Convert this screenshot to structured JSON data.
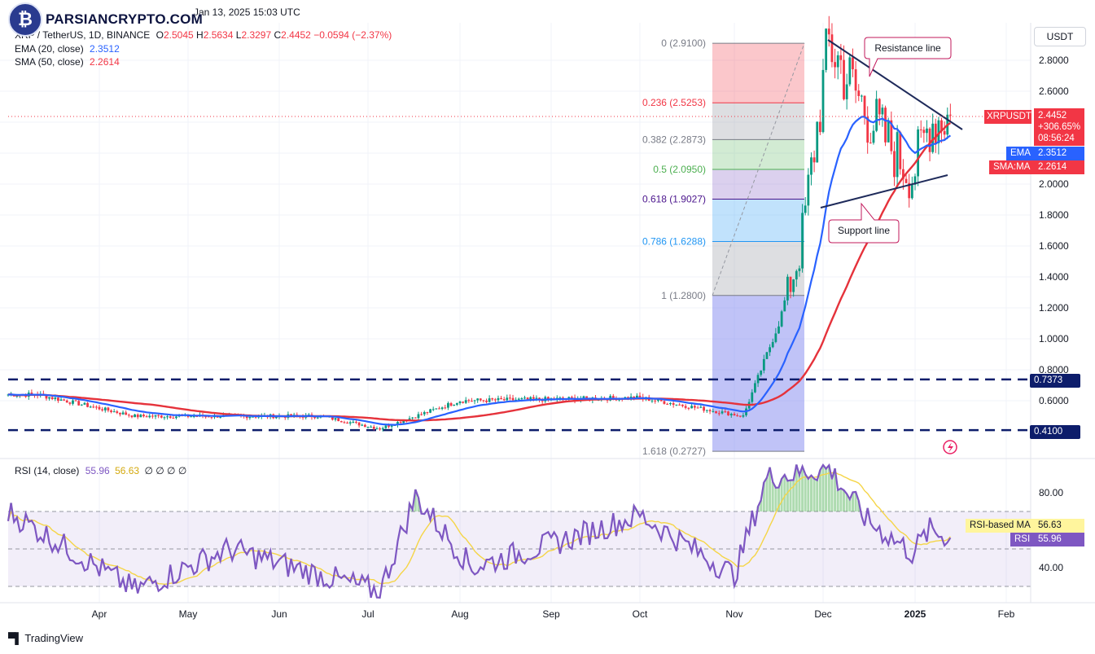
{
  "header": {
    "timestamp": "Jan 13, 2025 15:03 UTC",
    "symbol_line": "XRP / TetherUS, 1D, BINANCE",
    "ohlc": {
      "o_label": "O",
      "o": "2.5045",
      "h_label": "H",
      "h": "2.5634",
      "l_label": "L",
      "l": "2.3297",
      "c_label": "C",
      "c": "2.4452",
      "change": "−0.0594 (−2.37%)"
    },
    "ema_label": "EMA (20, close)",
    "ema_value": "2.3512",
    "sma_label": "SMA (50, close)",
    "sma_value": "2.2614"
  },
  "logo": {
    "text": "PARSIANCRYPTO.COM",
    "glyph": "₿"
  },
  "currency_button": "USDT",
  "price_tags": {
    "symbol": "XRPUSDT",
    "price": "2.4452",
    "change": "+306.65%",
    "countdown": "08:56:24",
    "ema_label": "EMA",
    "ema": "2.3512",
    "sma_label": "SMA:MA",
    "sma": "2.2614",
    "level_high": "0.7373",
    "level_low": "0.4100"
  },
  "annotations": {
    "resistance": "Resistance line",
    "support": "Support line"
  },
  "rsi_header": {
    "label": "RSI (14, close)",
    "rsi": "55.96",
    "ma": "56.63",
    "extras": "∅ ∅ ∅ ∅"
  },
  "rsi_tags": {
    "ma_label": "RSI-based MA",
    "ma": "56.63",
    "rsi_label": "RSI",
    "rsi": "55.96"
  },
  "footer": {
    "brand": "TradingView"
  },
  "colors": {
    "up": "#089981",
    "down": "#f23645",
    "ema": "#2962ff",
    "sma": "#e5323b",
    "trend": "#1e2a5a",
    "rsi": "#7e57c2",
    "rsi_ma": "#f5d547"
  },
  "chart_data": [
    {
      "type": "candlestick",
      "price_axis": {
        "ticks": [
          "2.8000",
          "2.6000",
          "2.4000",
          "2.2000",
          "2.0000",
          "1.8000",
          "1.6000",
          "1.4000",
          "1.2000",
          "1.0000",
          "0.8000",
          "0.6000"
        ],
        "range": [
          0.27,
          2.92
        ]
      },
      "time_axis": {
        "ticks": [
          "Apr",
          "May",
          "Jun",
          "Jul",
          "Aug",
          "Sep",
          "Oct",
          "Nov",
          "Dec",
          "2025",
          "Feb"
        ]
      },
      "fibonacci": [
        {
          "ratio": "0",
          "label": "0 (2.9100)",
          "price": 2.91,
          "color": "#787b86"
        },
        {
          "ratio": "0.236",
          "label": "0.236 (2.5253)",
          "price": 2.5253,
          "color": "#f23645"
        },
        {
          "ratio": "0.382",
          "label": "0.382 (2.2873)",
          "price": 2.2873,
          "color": "#787b86"
        },
        {
          "ratio": "0.5",
          "label": "0.5 (2.0950)",
          "price": 2.095,
          "color": "#4caf50"
        },
        {
          "ratio": "0.618",
          "label": "0.618 (1.9027)",
          "price": 1.9027,
          "color": "#4a148c"
        },
        {
          "ratio": "0.786",
          "label": "0.786 (1.6288)",
          "price": 1.6288,
          "color": "#2196f3"
        },
        {
          "ratio": "1",
          "label": "1 (1.2800)",
          "price": 1.28,
          "color": "#787b86"
        },
        {
          "ratio": "1.618",
          "label": "1.618 (0.2727)",
          "price": 0.2727,
          "color": "#787b86"
        }
      ],
      "horizontal_levels": [
        0.7373,
        0.41
      ],
      "key_points": [
        {
          "date": "2024-03-11",
          "price": 0.64
        },
        {
          "date": "2024-04-13",
          "price": 0.5
        },
        {
          "date": "2024-06-15",
          "price": 0.5
        },
        {
          "date": "2024-07-05",
          "price": 0.42
        },
        {
          "date": "2024-08-01",
          "price": 0.6
        },
        {
          "date": "2024-10-01",
          "price": 0.62
        },
        {
          "date": "2024-11-04",
          "price": 0.5
        },
        {
          "date": "2024-11-16",
          "price": 1.1
        },
        {
          "date": "2024-11-23",
          "price": 1.55
        },
        {
          "date": "2024-12-03",
          "price": 2.91
        },
        {
          "date": "2024-12-16",
          "price": 2.45
        },
        {
          "date": "2024-12-31",
          "price": 2.05
        },
        {
          "date": "2025-01-06",
          "price": 2.4
        },
        {
          "date": "2025-01-13",
          "price": 2.4452
        }
      ],
      "indicators": [
        {
          "name": "EMA (20, close)",
          "last": 2.3512
        },
        {
          "name": "SMA (50, close)",
          "last": 2.2614
        }
      ]
    },
    {
      "type": "line",
      "title": "RSI (14, close)",
      "y_ticks": [
        "80.00",
        "40.00"
      ],
      "bands": [
        70,
        50,
        30
      ],
      "series": [
        {
          "name": "RSI",
          "last": 55.96,
          "x": [
            "2024-03-01",
            "2024-04-13",
            "2024-05-15",
            "2024-07-05",
            "2024-07-17",
            "2024-08-05",
            "2024-09-06",
            "2024-10-01",
            "2024-11-01",
            "2024-11-12",
            "2024-12-03",
            "2024-12-16",
            "2024-12-31",
            "2025-01-06",
            "2025-01-13"
          ],
          "values": [
            70,
            28,
            50,
            27,
            78,
            40,
            55,
            68,
            36,
            88,
            93,
            65,
            48,
            60,
            55.96
          ]
        },
        {
          "name": "RSI-based MA",
          "last": 56.63
        }
      ]
    }
  ]
}
